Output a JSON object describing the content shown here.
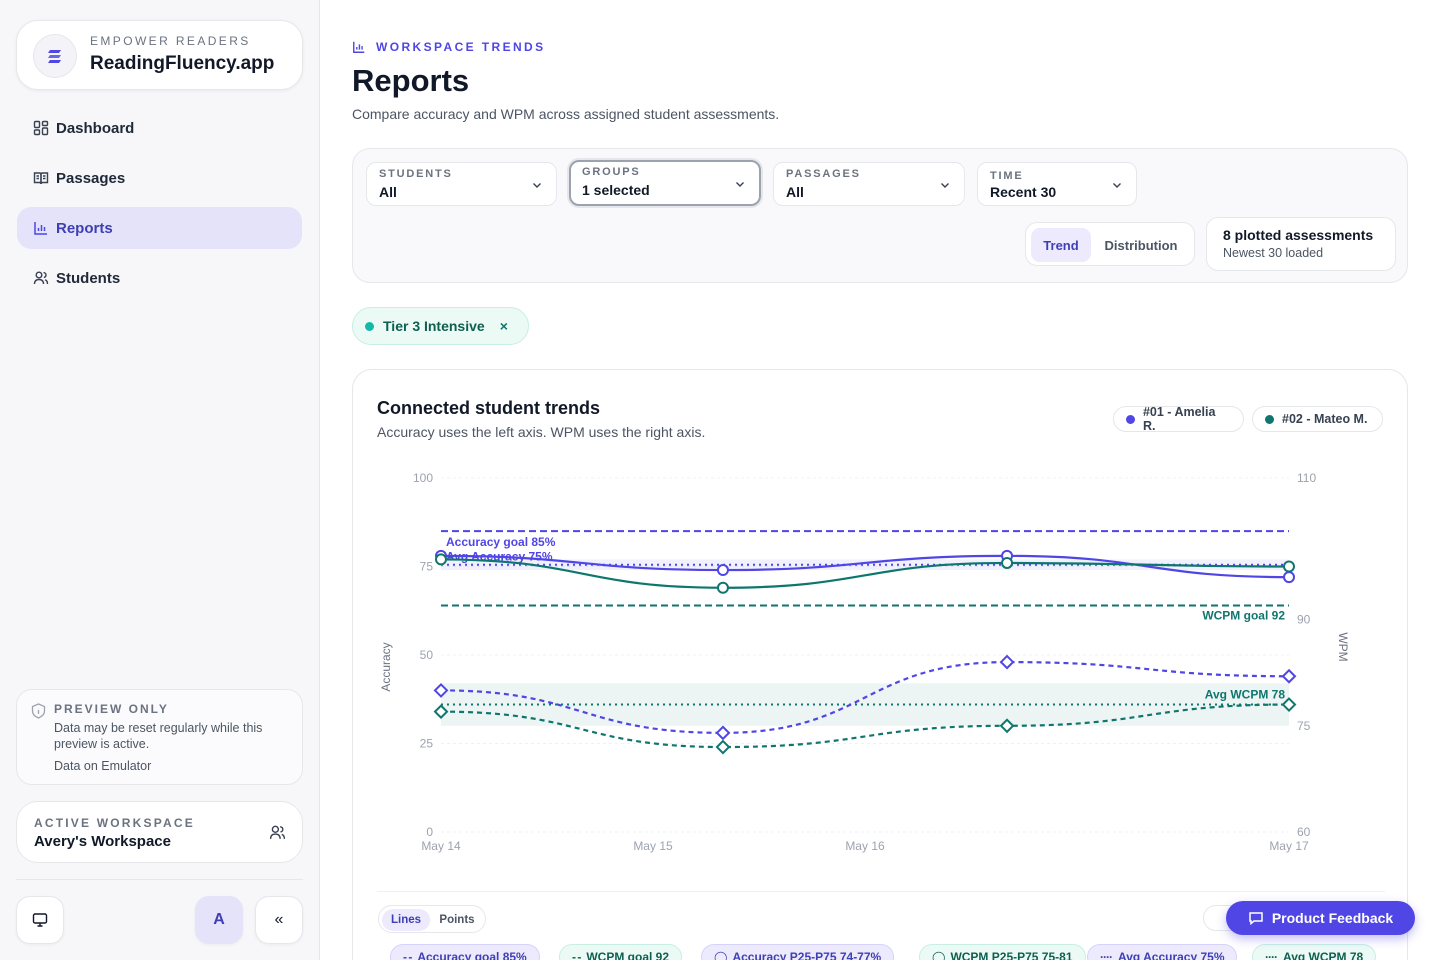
{
  "brand": {
    "eyebrow": "EMPOWER READERS",
    "name": "ReadingFluency.app"
  },
  "nav": [
    {
      "label": "Dashboard",
      "icon": "dashboard-icon"
    },
    {
      "label": "Passages",
      "icon": "book-icon"
    },
    {
      "label": "Reports",
      "icon": "bar-chart-icon",
      "active": true
    },
    {
      "label": "Students",
      "icon": "users-icon"
    }
  ],
  "preview": {
    "title": "PREVIEW ONLY",
    "body": "Data may be reset regularly while this preview is active.",
    "foot": "Data on Emulator"
  },
  "workspace": {
    "label": "ACTIVE WORKSPACE",
    "name": "Avery's Workspace"
  },
  "avatar": "A",
  "collapse": "«",
  "header": {
    "eyebrow": "WORKSPACE TRENDS",
    "title": "Reports",
    "subtitle": "Compare accuracy and WPM across assigned student assessments."
  },
  "filters": [
    {
      "label": "STUDENTS",
      "value": "All"
    },
    {
      "label": "GROUPS",
      "value": "1 selected"
    },
    {
      "label": "PASSAGES",
      "value": "All"
    },
    {
      "label": "TIME",
      "value": "Recent 30"
    }
  ],
  "view_toggle": {
    "trend": "Trend",
    "distribution": "Distribution"
  },
  "counts": {
    "title": "8 plotted assessments",
    "sub": "Newest 30 loaded"
  },
  "active_chip": {
    "label": "Tier 3 Intensive",
    "remove": "×"
  },
  "chart_card": {
    "title": "Connected student trends",
    "subtitle": "Accuracy uses the left axis. WPM uses the right axis.",
    "legend": [
      {
        "label": "#01 - Amelia R.",
        "color": "#4f46e5"
      },
      {
        "label": "#02 - Mateo M.",
        "color": "#0f766e"
      }
    ]
  },
  "chart_data": {
    "type": "line",
    "x_ticks": [
      "May 14",
      "May 15",
      "May 16",
      "May 17"
    ],
    "ylabel_left": "Accuracy",
    "ylabel_right": "WPM",
    "y_left_ticks": [
      "0",
      "25",
      "50",
      "75",
      "100"
    ],
    "y_right_ticks": [
      "60",
      "75",
      "90",
      "110"
    ],
    "ylim_left": [
      0,
      100
    ],
    "ylim_right": [
      60,
      110
    ],
    "reference_lines": [
      {
        "label": "Accuracy goal 85%",
        "axis": "left",
        "value": 85,
        "color": "#4f46e5",
        "style": "dashed"
      },
      {
        "label": "Avg Accuracy 75%",
        "axis": "left",
        "value": 75.5,
        "color": "#4f46e5",
        "style": "dotted"
      },
      {
        "label": "WCPM goal 92",
        "axis": "right",
        "value": 92,
        "color": "#0f766e",
        "style": "dashed"
      },
      {
        "label": "Avg WCPM 78",
        "axis": "right",
        "value": 78,
        "color": "#0f766e",
        "style": "dotted"
      }
    ],
    "bands": [
      {
        "axis": "left",
        "range": [
          74,
          77
        ],
        "color": "#4f46e5"
      },
      {
        "axis": "right",
        "range": [
          75,
          81
        ],
        "color": "#0f766e"
      }
    ],
    "series": [
      {
        "name": "#01 - Amelia R.",
        "metric": "Accuracy",
        "axis": "left",
        "color": "#4f46e5",
        "marker": "circle",
        "style": "solid",
        "points": [
          [
            0,
            78
          ],
          [
            1.33,
            74
          ],
          [
            2.67,
            78
          ],
          [
            4,
            72
          ]
        ]
      },
      {
        "name": "#02 - Mateo M.",
        "metric": "Accuracy",
        "axis": "left",
        "color": "#0f766e",
        "marker": "circle",
        "style": "solid",
        "points": [
          [
            0,
            77
          ],
          [
            1.33,
            69
          ],
          [
            2.67,
            76
          ],
          [
            4,
            75
          ]
        ]
      },
      {
        "name": "#01 - Amelia R.",
        "metric": "WPM",
        "axis": "right",
        "color": "#4f46e5",
        "marker": "diamond",
        "style": "dashed",
        "points": [
          [
            0,
            80
          ],
          [
            1.33,
            74
          ],
          [
            2.67,
            84
          ],
          [
            4,
            82
          ]
        ]
      },
      {
        "name": "#02 - Mateo M.",
        "metric": "WPM",
        "axis": "right",
        "color": "#0f766e",
        "marker": "diamond",
        "style": "dashed",
        "points": [
          [
            0,
            77
          ],
          [
            1.33,
            72
          ],
          [
            2.67,
            75
          ],
          [
            4,
            78
          ]
        ]
      }
    ],
    "x_positions": [
      0,
      1,
      2,
      3
    ],
    "grid": true
  },
  "plot_mode": {
    "lines": "Lines",
    "points": "Points"
  },
  "series_chips": [
    {
      "label": "Accuracy goal 85%",
      "symbol": "- -",
      "bg": "#eceafc",
      "border": "#d6d3fa",
      "color": "#3f3fb5"
    },
    {
      "label": "WCPM goal 92",
      "symbol": "- -",
      "bg": "#ecfaf6",
      "border": "#c7efe3",
      "color": "#0f5f50"
    },
    {
      "label": "Accuracy P25-P75 74-77%",
      "symbol": "◯",
      "bg": "#eceafc",
      "border": "#d6d3fa",
      "color": "#3f3fb5"
    },
    {
      "label": "WCPM P25-P75 75-81",
      "symbol": "◯",
      "bg": "#ecfaf6",
      "border": "#c7efe3",
      "color": "#0f5f50"
    },
    {
      "label": "Avg Accuracy 75%",
      "symbol": "····",
      "bg": "#eceafc",
      "border": "#d6d3fa",
      "color": "#3f3fb5"
    },
    {
      "label": "Avg WCPM 78",
      "symbol": "····",
      "bg": "#ecfaf6",
      "border": "#c7efe3",
      "color": "#0f5f50"
    }
  ],
  "feedback": {
    "label": "Product Feedback"
  }
}
